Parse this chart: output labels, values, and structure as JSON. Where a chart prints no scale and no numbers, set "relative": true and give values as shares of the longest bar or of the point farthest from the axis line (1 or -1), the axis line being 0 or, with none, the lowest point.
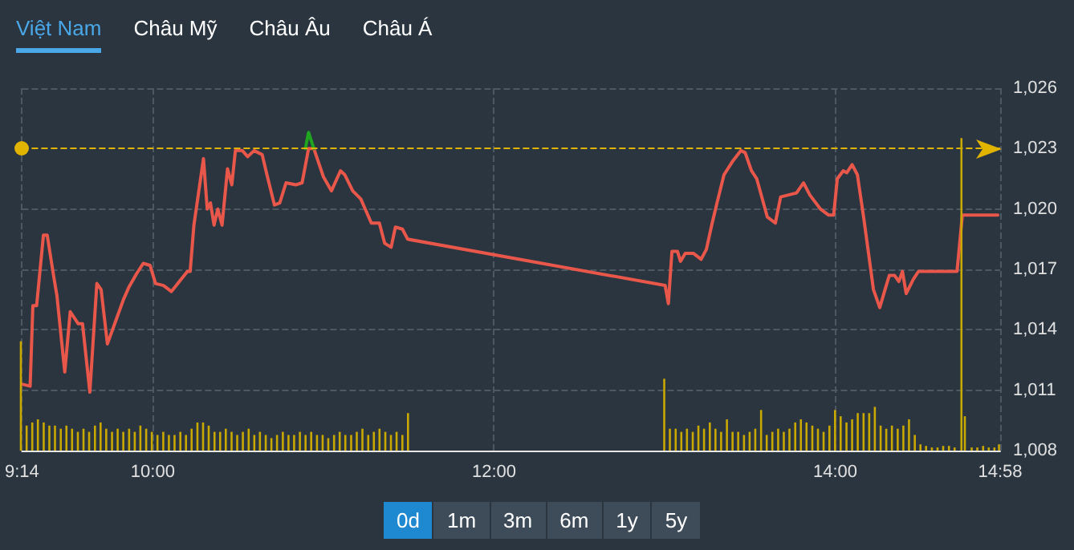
{
  "chart_data": [
    {
      "type": "line",
      "annotations": [
        "Việt Nam",
        "Châu Mỹ",
        "Châu Âu",
        "Châu Á",
        "0d",
        "1m",
        "3m",
        "6m",
        "1y",
        "5y"
      ],
      "xlim": [
        9.2333,
        14.9667
      ],
      "xticks": [
        {
          "value": 9.2333,
          "label": "9:14"
        },
        {
          "value": 10,
          "label": "10:00"
        },
        {
          "value": 12,
          "label": "12:00"
        },
        {
          "value": 14,
          "label": "14:00"
        },
        {
          "value": 14.9667,
          "label": "14:58"
        }
      ],
      "ylim": [
        1008,
        1026
      ],
      "yticks": [
        {
          "value": 1008,
          "label": "1,008"
        },
        {
          "value": 1011,
          "label": "1,011"
        },
        {
          "value": 1014,
          "label": "1,014"
        },
        {
          "value": 1017,
          "label": "1,017"
        },
        {
          "value": 1020,
          "label": "1,020"
        },
        {
          "value": 1023,
          "label": "1,023"
        },
        {
          "value": 1026,
          "label": "1,026"
        }
      ],
      "grid": true,
      "marker": "none",
      "line_style": "solid",
      "ref_lines": [
        {
          "axis": "y",
          "value": 1023,
          "color": "#e0b400",
          "line_style": "dashed"
        }
      ],
      "series": [
        {
          "color": "#e8574a",
          "x": [
            9.2333,
            9.281,
            9.297,
            9.319,
            9.359,
            9.381,
            9.422,
            9.438,
            9.484,
            9.516,
            9.563,
            9.588,
            9.631,
            9.672,
            9.697,
            9.734,
            9.781,
            9.828,
            9.859,
            9.906,
            9.944,
            9.984,
            10.016,
            10.063,
            10.109,
            10.156,
            10.203,
            10.219,
            10.241,
            10.297,
            10.319,
            10.338,
            10.359,
            10.381,
            10.406,
            10.438,
            10.463,
            10.484,
            10.525,
            10.556,
            10.594,
            10.641,
            10.672,
            10.713,
            10.744,
            10.781,
            10.838,
            10.875,
            10.913,
            10.944,
            11.0,
            11.047,
            11.1,
            11.125,
            11.172,
            11.219,
            11.281,
            11.328,
            11.359,
            11.397,
            11.422,
            11.463,
            11.494,
            13.003,
            13.022,
            13.043,
            13.075,
            13.093,
            13.121,
            13.168,
            13.214,
            13.245,
            13.276,
            13.307,
            13.348,
            13.401,
            13.447,
            13.472,
            13.509,
            13.54,
            13.602,
            13.649,
            13.68,
            13.727,
            13.773,
            13.814,
            13.851,
            13.913,
            13.96,
            13.991,
            14.012,
            14.047,
            14.068,
            14.099,
            14.13,
            14.168,
            14.224,
            14.261,
            14.292,
            14.317,
            14.348,
            14.373,
            14.394,
            14.416,
            14.457,
            14.488,
            14.714,
            14.745,
            14.953
          ],
          "values": [
            1011.3,
            1011.2,
            1015.2,
            1015.2,
            1018.7,
            1018.7,
            1016.5,
            1015.7,
            1011.9,
            1014.9,
            1014.3,
            1014.3,
            1010.9,
            1016.3,
            1016.0,
            1013.3,
            1014.4,
            1015.5,
            1016.1,
            1016.8,
            1017.3,
            1017.2,
            1016.3,
            1016.2,
            1015.9,
            1016.4,
            1016.9,
            1016.9,
            1019.2,
            1022.5,
            1020.0,
            1020.3,
            1019.2,
            1020.0,
            1019.2,
            1022.0,
            1021.2,
            1022.9,
            1022.9,
            1022.6,
            1022.9,
            1022.7,
            1021.6,
            1020.2,
            1020.3,
            1021.3,
            1021.2,
            1021.3,
            1023.0,
            1023.0,
            1021.6,
            1020.9,
            1021.9,
            1021.7,
            1020.9,
            1020.5,
            1019.3,
            1019.3,
            1018.3,
            1018.1,
            1019.1,
            1019.0,
            1018.5,
            1016.2,
            1015.3,
            1017.9,
            1017.9,
            1017.4,
            1017.8,
            1017.8,
            1017.5,
            1018.0,
            1019.2,
            1020.3,
            1021.7,
            1022.4,
            1022.9,
            1022.8,
            1021.9,
            1021.5,
            1019.6,
            1019.3,
            1020.6,
            1020.7,
            1020.8,
            1021.3,
            1020.7,
            1020.0,
            1019.7,
            1019.7,
            1021.5,
            1021.9,
            1021.8,
            1022.2,
            1021.7,
            1019.5,
            1016.0,
            1015.1,
            1016.0,
            1016.7,
            1016.7,
            1016.4,
            1016.9,
            1015.8,
            1016.5,
            1016.9,
            1016.9,
            1019.7,
            1019.7
          ]
        },
        {
          "color": "#1fa51f",
          "x": [
            10.894,
            10.913,
            10.944
          ],
          "values": [
            1023.0,
            1023.8,
            1023.0
          ]
        }
      ]
    },
    {
      "type": "bar",
      "relative": true,
      "tick_labels": false,
      "xlim": [
        9.2333,
        14.9667
      ],
      "series": [
        {
          "color": "#c9a800",
          "x": [
            9.2333,
            9.267,
            9.3,
            9.333,
            9.367,
            9.4,
            9.433,
            9.467,
            9.5,
            9.533,
            9.567,
            9.6,
            9.633,
            9.667,
            9.7,
            9.733,
            9.767,
            9.8,
            9.833,
            9.867,
            9.9,
            9.933,
            9.967,
            10,
            10.033,
            10.067,
            10.1,
            10.133,
            10.167,
            10.2,
            10.233,
            10.267,
            10.3,
            10.333,
            10.367,
            10.4,
            10.433,
            10.467,
            10.5,
            10.533,
            10.567,
            10.6,
            10.633,
            10.667,
            10.7,
            10.733,
            10.767,
            10.8,
            10.833,
            10.867,
            10.9,
            10.933,
            10.967,
            11,
            11.033,
            11.067,
            11.1,
            11.133,
            11.167,
            11.2,
            11.233,
            11.267,
            11.3,
            11.333,
            11.367,
            11.4,
            11.433,
            11.467,
            11.5,
            13,
            13.033,
            13.067,
            13.1,
            13.133,
            13.167,
            13.2,
            13.233,
            13.267,
            13.3,
            13.333,
            13.367,
            13.4,
            13.433,
            13.467,
            13.5,
            13.533,
            13.567,
            13.6,
            13.633,
            13.667,
            13.7,
            13.733,
            13.767,
            13.8,
            13.833,
            13.867,
            13.9,
            13.933,
            13.967,
            14,
            14.033,
            14.067,
            14.1,
            14.133,
            14.167,
            14.2,
            14.233,
            14.267,
            14.3,
            14.333,
            14.367,
            14.4,
            14.433,
            14.467,
            14.5,
            14.533,
            14.567,
            14.6,
            14.633,
            14.667,
            14.7,
            14.74,
            14.76,
            14.8,
            14.833,
            14.867,
            14.9,
            14.933,
            14.96
          ],
          "values": [
            0.35,
            0.08,
            0.09,
            0.1,
            0.09,
            0.08,
            0.08,
            0.07,
            0.08,
            0.07,
            0.06,
            0.07,
            0.06,
            0.08,
            0.09,
            0.07,
            0.06,
            0.07,
            0.06,
            0.07,
            0.06,
            0.08,
            0.07,
            0.06,
            0.05,
            0.06,
            0.05,
            0.05,
            0.06,
            0.05,
            0.07,
            0.09,
            0.09,
            0.08,
            0.06,
            0.06,
            0.07,
            0.06,
            0.05,
            0.06,
            0.07,
            0.05,
            0.06,
            0.05,
            0.04,
            0.05,
            0.06,
            0.05,
            0.05,
            0.06,
            0.05,
            0.06,
            0.05,
            0.05,
            0.04,
            0.05,
            0.06,
            0.05,
            0.05,
            0.06,
            0.07,
            0.05,
            0.06,
            0.07,
            0.06,
            0.05,
            0.06,
            0.05,
            0.12,
            0.23,
            0.07,
            0.07,
            0.06,
            0.07,
            0.06,
            0.08,
            0.07,
            0.09,
            0.07,
            0.06,
            0.1,
            0.06,
            0.06,
            0.05,
            0.06,
            0.07,
            0.13,
            0.05,
            0.06,
            0.07,
            0.06,
            0.07,
            0.09,
            0.1,
            0.09,
            0.08,
            0.07,
            0.06,
            0.08,
            0.13,
            0.11,
            0.09,
            0.1,
            0.12,
            0.12,
            0.12,
            0.14,
            0.08,
            0.07,
            0.08,
            0.07,
            0.08,
            0.1,
            0.05,
            0.02,
            0.015,
            0.01,
            0.01,
            0.015,
            0.015,
            0.01,
            1,
            0.11,
            0.01,
            0.01,
            0.015,
            0.01,
            0.01,
            0.02
          ]
        }
      ]
    }
  ]
}
